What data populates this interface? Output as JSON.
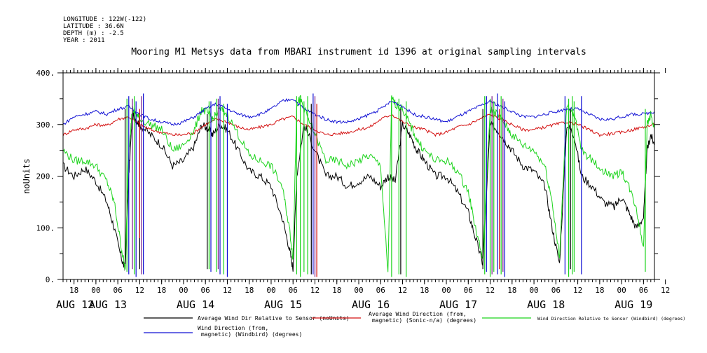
{
  "header": {
    "longitude": "LONGITUDE : 122W(-122)",
    "latitude": "LATITUDE : 36.6N",
    "depth": "DEPTH (m) : -2.5",
    "year": "YEAR : 2011"
  },
  "chart_data": {
    "type": "line",
    "title": "Mooring M1 Metsys data from MBARI instrument id 1396 at original sampling intervals",
    "ylabel": "noUnits",
    "xlabel": "",
    "ylim": [
      0,
      400
    ],
    "y_ticks": [
      "0.",
      "100.",
      "200.",
      "300.",
      "400."
    ],
    "x_range_hours": [
      -9,
      153
    ],
    "hour_ticks": [
      {
        "h": -6,
        "label": "18"
      },
      {
        "h": 0,
        "label": "00"
      },
      {
        "h": 6,
        "label": "06"
      },
      {
        "h": 12,
        "label": "12"
      },
      {
        "h": 18,
        "label": "18"
      },
      {
        "h": 24,
        "label": "00"
      },
      {
        "h": 30,
        "label": "06"
      },
      {
        "h": 36,
        "label": "12"
      },
      {
        "h": 42,
        "label": "18"
      },
      {
        "h": 48,
        "label": "00"
      },
      {
        "h": 54,
        "label": "06"
      },
      {
        "h": 60,
        "label": "12"
      },
      {
        "h": 66,
        "label": "18"
      },
      {
        "h": 72,
        "label": "00"
      },
      {
        "h": 78,
        "label": "06"
      },
      {
        "h": 84,
        "label": "12"
      },
      {
        "h": 90,
        "label": "18"
      },
      {
        "h": 96,
        "label": "00"
      },
      {
        "h": 102,
        "label": "06"
      },
      {
        "h": 108,
        "label": "12"
      },
      {
        "h": 114,
        "label": "18"
      },
      {
        "h": 120,
        "label": "00"
      },
      {
        "h": 126,
        "label": "06"
      },
      {
        "h": 132,
        "label": "12"
      },
      {
        "h": 138,
        "label": "18"
      },
      {
        "h": 144,
        "label": "00"
      },
      {
        "h": 150,
        "label": "06"
      },
      {
        "h": 156,
        "label": "12"
      }
    ],
    "day_labels": [
      {
        "h": -24,
        "label": "AUG 12"
      },
      {
        "h": 0,
        "label": "AUG 13"
      },
      {
        "h": 24,
        "label": "AUG 14"
      },
      {
        "h": 48,
        "label": "AUG 15"
      },
      {
        "h": 72,
        "label": "AUG 16"
      },
      {
        "h": 96,
        "label": "AUG 17"
      },
      {
        "h": 120,
        "label": "AUG 18"
      },
      {
        "h": 144,
        "label": "AUG 19"
      }
    ],
    "series": [
      {
        "name": "Average Wind Dir Relative to Sensor (noUnits)",
        "color": "#000000",
        "x": [
          -9,
          -6,
          -3,
          0,
          3,
          5,
          7,
          8,
          9,
          10,
          11,
          12,
          15,
          18,
          21,
          24,
          27,
          29,
          31,
          32,
          34,
          36,
          39,
          42,
          45,
          48,
          51,
          53,
          54,
          55,
          57,
          60,
          63,
          66,
          69,
          72,
          75,
          78,
          80,
          82,
          84,
          86,
          88,
          90,
          93,
          96,
          99,
          102,
          104,
          106,
          108,
          110,
          112,
          114,
          117,
          120,
          123,
          125,
          127,
          129,
          131,
          133,
          136,
          139,
          142,
          144,
          146,
          148,
          150,
          151,
          152,
          153
        ],
        "y": [
          220,
          200,
          215,
          190,
          150,
          100,
          40,
          20,
          200,
          320,
          310,
          300,
          280,
          260,
          220,
          230,
          260,
          300,
          290,
          280,
          300,
          290,
          250,
          210,
          200,
          180,
          120,
          60,
          20,
          200,
          300,
          250,
          200,
          200,
          180,
          190,
          200,
          180,
          200,
          190,
          300,
          280,
          250,
          230,
          200,
          200,
          170,
          130,
          80,
          30,
          300,
          290,
          270,
          250,
          220,
          210,
          180,
          100,
          30,
          300,
          280,
          200,
          180,
          150,
          140,
          160,
          130,
          100,
          120,
          250,
          280,
          260
        ]
      },
      {
        "name": "Average Wind Direction (from, magnetic) (Sonic-n/a) (degrees)",
        "color": "#d41010",
        "x": [
          -9,
          -6,
          -3,
          0,
          3,
          6,
          9,
          12,
          15,
          18,
          21,
          24,
          27,
          30,
          33,
          36,
          39,
          42,
          45,
          48,
          51,
          54,
          57,
          60,
          63,
          66,
          69,
          72,
          75,
          78,
          81,
          84,
          87,
          90,
          93,
          96,
          99,
          102,
          105,
          108,
          111,
          114,
          117,
          120,
          123,
          126,
          129,
          132,
          135,
          138,
          141,
          144,
          147,
          150,
          153
        ],
        "y": [
          280,
          290,
          292,
          300,
          298,
          310,
          315,
          300,
          290,
          285,
          280,
          280,
          285,
          300,
          310,
          305,
          295,
          290,
          295,
          300,
          310,
          315,
          300,
          290,
          280,
          282,
          285,
          290,
          295,
          310,
          320,
          305,
          295,
          290,
          280,
          285,
          295,
          300,
          310,
          320,
          310,
          300,
          290,
          290,
          295,
          300,
          305,
          300,
          290,
          280,
          282,
          285,
          290,
          295,
          300
        ]
      },
      {
        "name": "Wind Direction Relative to Sensor (Windbird) (degrees)",
        "color": "#1cd41c",
        "x": [
          -9,
          -6,
          -3,
          0,
          3,
          5,
          7,
          8,
          9,
          10,
          11,
          12,
          15,
          18,
          21,
          24,
          27,
          29,
          31,
          32,
          34,
          36,
          39,
          42,
          45,
          48,
          51,
          53,
          54,
          55,
          56,
          57,
          60,
          63,
          66,
          69,
          72,
          75,
          78,
          80,
          81,
          82,
          84,
          86,
          88,
          90,
          93,
          96,
          99,
          102,
          104,
          106,
          108,
          110,
          112,
          114,
          117,
          120,
          123,
          125,
          127,
          129,
          131,
          133,
          136,
          139,
          142,
          144,
          146,
          148,
          150,
          151,
          152,
          153
        ],
        "y": [
          250,
          230,
          230,
          220,
          190,
          150,
          60,
          20,
          250,
          330,
          320,
          310,
          300,
          290,
          250,
          260,
          290,
          330,
          320,
          310,
          330,
          320,
          280,
          240,
          230,
          220,
          180,
          100,
          40,
          340,
          350,
          330,
          280,
          230,
          230,
          220,
          230,
          240,
          220,
          10,
          350,
          340,
          330,
          300,
          270,
          250,
          230,
          230,
          210,
          170,
          100,
          40,
          330,
          320,
          300,
          280,
          260,
          250,
          220,
          150,
          40,
          340,
          320,
          250,
          230,
          210,
          200,
          210,
          180,
          140,
          60,
          300,
          320,
          290
        ]
      },
      {
        "name": "Wind Direction (from, magnetic) (Windbird) (degrees)",
        "color": "#1010d4",
        "x": [
          -9,
          -6,
          -3,
          0,
          3,
          6,
          9,
          12,
          15,
          18,
          21,
          24,
          27,
          30,
          33,
          36,
          39,
          42,
          45,
          48,
          51,
          54,
          57,
          60,
          63,
          66,
          69,
          72,
          75,
          78,
          81,
          84,
          87,
          90,
          93,
          96,
          99,
          102,
          105,
          108,
          111,
          114,
          117,
          120,
          123,
          126,
          129,
          132,
          135,
          138,
          141,
          144,
          147,
          150,
          153
        ],
        "y": [
          300,
          315,
          320,
          325,
          320,
          330,
          335,
          320,
          310,
          305,
          300,
          305,
          315,
          330,
          340,
          330,
          320,
          315,
          320,
          330,
          345,
          350,
          330,
          320,
          310,
          305,
          305,
          310,
          320,
          330,
          345,
          335,
          320,
          315,
          310,
          305,
          315,
          325,
          335,
          345,
          335,
          325,
          315,
          315,
          320,
          325,
          330,
          330,
          320,
          310,
          310,
          315,
          320,
          320,
          325
        ]
      }
    ],
    "spikes": [
      {
        "color": "#1cd41c",
        "x": [
          8.5,
          10.5,
          31,
          33,
          35,
          55,
          56,
          57,
          58,
          81,
          83,
          85,
          106.5,
          108,
          109,
          111,
          129.5,
          130.5,
          131,
          150.5
        ],
        "y0": [
          15,
          10,
          20,
          15,
          10,
          10,
          5,
          15,
          10,
          5,
          10,
          5,
          10,
          5,
          15,
          10,
          5,
          10,
          15,
          15
        ],
        "y1": [
          350,
          355,
          345,
          350,
          340,
          355,
          350,
          345,
          355,
          355,
          350,
          345,
          355,
          350,
          345,
          355,
          350,
          355,
          345,
          330
        ]
      },
      {
        "color": "#1010d4",
        "x": [
          9,
          11,
          13,
          31.5,
          34,
          36,
          59.5,
          107,
          110,
          112,
          128.5,
          133
        ],
        "y0": [
          10,
          5,
          10,
          15,
          10,
          5,
          10,
          15,
          10,
          5,
          10,
          10
        ],
        "y1": [
          355,
          345,
          360,
          345,
          355,
          340,
          360,
          355,
          360,
          345,
          355,
          355
        ]
      },
      {
        "color": "#000000",
        "x": [
          8,
          12,
          30.5,
          59,
          83.5,
          106,
          130
        ],
        "y0": [
          30,
          20,
          20,
          10,
          10,
          20,
          20
        ],
        "y1": [
          330,
          320,
          320,
          340,
          330,
          330,
          330
        ]
      },
      {
        "color": "#7a1a8a",
        "x": [
          10,
          12.5,
          33.5,
          60,
          108.5,
          111.5
        ],
        "y0": [
          20,
          10,
          20,
          5,
          10,
          15
        ],
        "y1": [
          350,
          355,
          350,
          355,
          355,
          350
        ]
      },
      {
        "color": "#d41010",
        "x": [
          12,
          60.5,
          110.5
        ],
        "y0": [
          80,
          5,
          20
        ],
        "y1": [
          330,
          340,
          330
        ]
      }
    ]
  }
}
